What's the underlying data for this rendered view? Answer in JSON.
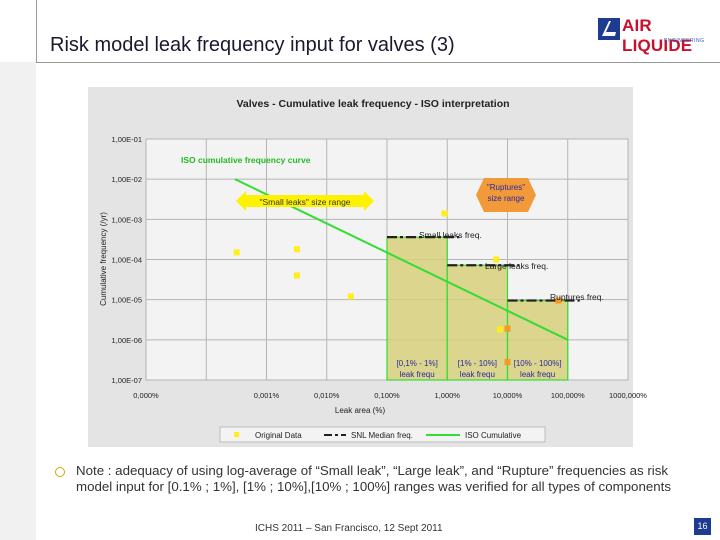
{
  "slide": {
    "title": "Risk model leak frequency input for valves (3)",
    "logo_text": "AIR LIQUIDE",
    "logo_sub": "ENGINEERING",
    "note": "Note : adequacy of using log-average of “Small leak”, “Large leak”, and “Rupture” frequencies as risk model input for [0.1% ; 1%], [1% ; 10%],[10% ; 100%] ranges was verified for all types of components",
    "footer": "ICHS 2011 – San Francisco, 12 Sept 2011",
    "page_number": "16"
  },
  "chart_data": {
    "type": "scatter",
    "title": "Valves - Cumulative leak frequency - ISO interpretation",
    "xlabel": "Leak area (%)",
    "ylabel": "Cumulative frequency (/yr)",
    "x_scale": "log",
    "y_scale": "log",
    "xlim": [
      1e-05,
      1000
    ],
    "ylim": [
      1e-07,
      0.1
    ],
    "x_tick_values": [
      1e-05,
      0.0001,
      0.001,
      0.01,
      0.1,
      1,
      10,
      100,
      1000
    ],
    "x_tick_labels": [
      "0,000%",
      "0,001%",
      "0,010%",
      "0,100%",
      "1,000%",
      "10,000%",
      "100,000%",
      "1000,000%"
    ],
    "x_tick_label_values": [
      1e-05,
      0.001,
      0.01,
      0.1,
      1,
      10,
      100,
      1000
    ],
    "y_tick_values": [
      1e-07,
      1e-06,
      1e-05,
      0.0001,
      0.001,
      0.01,
      0.1
    ],
    "y_tick_labels": [
      "1,00E-07",
      "1,00E-06",
      "1,00E-05",
      "1,00E-04",
      "1,00E-03",
      "1,00E-02",
      "1,00E-01"
    ],
    "grid": true,
    "legend_position": "bottom",
    "colors": {
      "original": "#ffee1a",
      "original_orange": "#f59a1e",
      "snl": "#222222",
      "iso": "#33dd33",
      "band_fill": "#d6cf7a",
      "small_range": "#fff200",
      "ruptures_range": "#f29a3a",
      "band_label": "#2a2aa0"
    },
    "series": [
      {
        "name": "Original Data",
        "points": [
          {
            "x": 0.00032,
            "y": 0.00015,
            "color": "#ffee1a"
          },
          {
            "x": 0.0032,
            "y": 0.00018,
            "color": "#ffee1a"
          },
          {
            "x": 0.0032,
            "y": 4e-05,
            "color": "#ffee1a"
          },
          {
            "x": 0.025,
            "y": 1.2e-05,
            "color": "#ffee1a"
          },
          {
            "x": 0.9,
            "y": 0.0014,
            "color": "#ffee1a"
          },
          {
            "x": 6.5,
            "y": 0.0001,
            "color": "#ffee1a"
          },
          {
            "x": 7.5,
            "y": 1.8e-06,
            "color": "#ffee1a"
          },
          {
            "x": 10,
            "y": 1.9e-06,
            "color": "#f59a1e"
          },
          {
            "x": 10,
            "y": 2.8e-07,
            "color": "#f59a1e"
          },
          {
            "x": 70,
            "y": 9.5e-06,
            "color": "#f59a1e"
          }
        ]
      },
      {
        "name": "SNL Median freq.",
        "segments": [
          {
            "x0": 0.1,
            "x1": 1,
            "y": 0.00036
          },
          {
            "x0": 1,
            "x1": 10,
            "y": 7.2e-05
          },
          {
            "x0": 10,
            "x1": 100,
            "y": 9.5e-06
          }
        ]
      },
      {
        "name": "ISO Cumulative",
        "line": [
          {
            "x": 0.0003,
            "y": 0.01
          },
          {
            "x": 100,
            "y": 1e-06
          }
        ]
      }
    ],
    "bands": [
      {
        "x0": 0.1,
        "x1": 1,
        "y_top": 0.00036,
        "label": "[0,1% - 1%]\nleak frequ"
      },
      {
        "x0": 1,
        "x1": 10,
        "y_top": 7.2e-05,
        "label": "[1% - 10%]\nleak frequ"
      },
      {
        "x0": 10,
        "x1": 100,
        "y_top": 9.5e-06,
        "label": "[10% - 100%]\nleak frequ"
      }
    ],
    "annotations": {
      "iso_curve": "ISO cumulative frequency curve",
      "small_range": "\"Small leaks\" size range",
      "ruptures_range": "\"Ruptures\"\nsize range",
      "small_freq": "Small leaks freq.",
      "large_freq": "Large leaks freq.",
      "ruptures_freq": "Ruptures freq."
    }
  }
}
